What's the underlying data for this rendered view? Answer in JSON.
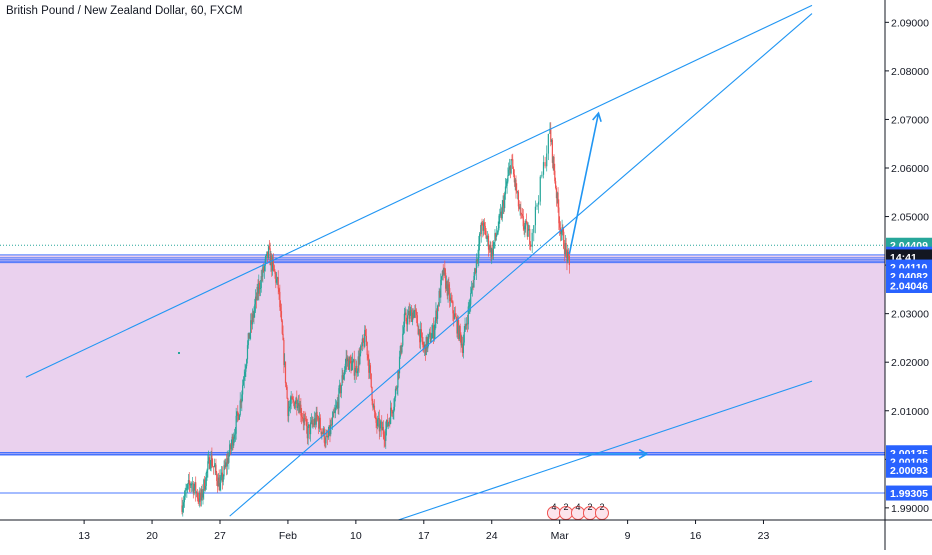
{
  "header": {
    "title": "British Pound / New Zealand Dollar, 60, FXCM"
  },
  "colors": {
    "candle_up": "#26a69a",
    "candle_down": "#ef5350",
    "trendline": "#2196f3",
    "zone_fill": "#e1bee7",
    "support_line": "#2962ff",
    "price_badge": "#2962ff",
    "last_price_line": "#26a69a",
    "last_price_badge": "#26a69a",
    "clock_badge": "#131722"
  },
  "chart_data": {
    "type": "candlestick",
    "title": "British Pound / New Zealand Dollar, 60, FXCM",
    "x_axis": {
      "labels": [
        "13",
        "20",
        "27",
        "Feb",
        "10",
        "17",
        "24",
        "Mar",
        "9",
        "16",
        "23"
      ],
      "range": [
        "Jan 10",
        "Mar 28"
      ]
    },
    "y_axis": {
      "labels": [
        "1.99000",
        "2.00000",
        "2.01000",
        "2.02000",
        "2.03000",
        "2.04000",
        "2.05000",
        "2.06000",
        "2.07000",
        "2.08000",
        "2.09000"
      ],
      "range": [
        1.9875,
        2.0946
      ]
    },
    "price_badges": [
      {
        "value": "2.04409",
        "price": 2.04409,
        "kind": "last"
      },
      {
        "value": "2",
        "price": 2.04225,
        "kind": "level"
      },
      {
        "value": "14:41",
        "price": 2.04168,
        "kind": "clock"
      },
      {
        "value": "2.04110",
        "price": 2.0396,
        "kind": "level"
      },
      {
        "value": "2.04082",
        "price": 2.0378,
        "kind": "level"
      },
      {
        "value": "2.04046",
        "price": 2.0358,
        "kind": "level"
      },
      {
        "value": "2.00135",
        "price": 2.00135,
        "kind": "level"
      },
      {
        "value": "2.00108",
        "price": 1.99955,
        "kind": "level"
      },
      {
        "value": "2.00093",
        "price": 1.99775,
        "kind": "level"
      },
      {
        "value": "1.99305",
        "price": 1.99305,
        "kind": "level"
      }
    ],
    "zone": {
      "top": 2.0421,
      "bottom": 2.0008
    },
    "horizontal_lines": [
      2.0421,
      2.0415,
      2.0411,
      2.0408,
      2.0405,
      2.0014,
      2.0011,
      2.0009,
      1.99305
    ],
    "dotted_line": 2.04409,
    "trendlines": [
      {
        "from": [
          "Jan 7",
          2.0169
        ],
        "to": [
          "Mar 28",
          2.0935
        ]
      },
      {
        "from": [
          "Jan 28",
          1.9883
        ],
        "to": [
          "Mar 28",
          2.0918
        ]
      },
      {
        "from": [
          "Feb 12",
          1.9859
        ],
        "to": [
          "Mar 28",
          2.0161
        ]
      }
    ],
    "arrows": [
      {
        "from": [
          "Mar 3",
          2.0423
        ],
        "to": [
          "Mar 6",
          2.0713
        ]
      },
      {
        "from": [
          "Mar 4",
          2.0011
        ],
        "to": [
          "Mar 11",
          2.0011
        ]
      }
    ],
    "price_path": [
      [
        "Jan 23",
        1.9905
      ],
      [
        "Jan 24",
        1.9955
      ],
      [
        "Jan 25",
        1.9915
      ],
      [
        "Jan 26",
        2.0005
      ],
      [
        "Jan 27",
        1.9945
      ],
      [
        "Jan 28",
        2.0015
      ],
      [
        "Jan 29",
        2.0105
      ],
      [
        "Jan 30",
        2.0255
      ],
      [
        "Jan 31",
        2.0355
      ],
      [
        "Feb 1",
        2.0425
      ],
      [
        "Feb 2",
        2.0355
      ],
      [
        "Feb 3",
        2.0105
      ],
      [
        "Feb 4",
        2.0125
      ],
      [
        "Feb 5",
        2.0055
      ],
      [
        "Feb 6",
        2.0085
      ],
      [
        "Feb 7",
        2.0035
      ],
      [
        "Feb 8",
        2.0105
      ],
      [
        "Feb 9",
        2.0205
      ],
      [
        "Feb 10",
        2.0185
      ],
      [
        "Feb 11",
        2.0255
      ],
      [
        "Feb 12",
        2.0075
      ],
      [
        "Feb 13",
        2.0055
      ],
      [
        "Feb 14",
        2.0125
      ],
      [
        "Feb 15",
        2.0285
      ],
      [
        "Feb 16",
        2.0305
      ],
      [
        "Feb 17",
        2.0225
      ],
      [
        "Feb 18",
        2.0265
      ],
      [
        "Feb 19",
        2.0385
      ],
      [
        "Feb 20",
        2.0305
      ],
      [
        "Feb 21",
        2.0235
      ],
      [
        "Feb 22",
        2.0355
      ],
      [
        "Feb 23",
        2.0485
      ],
      [
        "Feb 24",
        2.0425
      ],
      [
        "Feb 25",
        2.0505
      ],
      [
        "Feb 26",
        2.0615
      ],
      [
        "Feb 27",
        2.0495
      ],
      [
        "Feb 28",
        2.0455
      ],
      [
        "Mar 1",
        2.0675
      ],
      [
        "Mar 2",
        2.0485
      ],
      [
        "Mar 3",
        2.0395
      ]
    ],
    "event_markers": [
      "4",
      "2",
      "4",
      "2",
      "2"
    ],
    "grid": false,
    "legend": "none"
  }
}
